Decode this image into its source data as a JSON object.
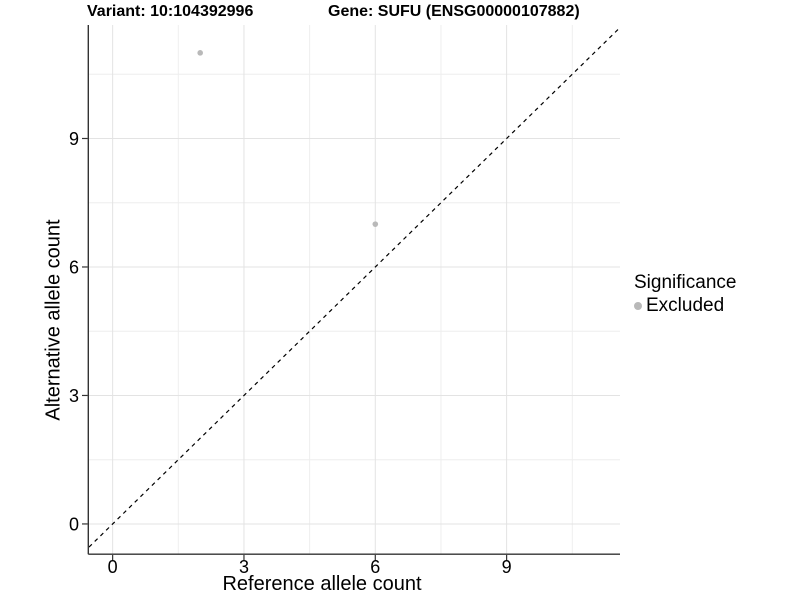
{
  "chart_data": {
    "type": "scatter",
    "title_left": "Variant: 10:104392996",
    "title_right": "Gene: SUFU (ENSG00000107882)",
    "xlabel": "Reference allele count",
    "ylabel": "Alternative allele count",
    "xlim": [
      -0.54,
      11.59
    ],
    "ylim": [
      -0.69,
      11.65
    ],
    "x_major_ticks": [
      0,
      3,
      6,
      9
    ],
    "y_major_ticks": [
      0,
      3,
      6,
      9
    ],
    "x_minor_ticks": [
      1.5,
      4.5,
      7.5,
      10.5
    ],
    "y_minor_ticks": [
      1.5,
      4.5,
      7.5,
      10.5
    ],
    "grid": "major+minor",
    "reference_line": {
      "type": "identity",
      "slope": 1,
      "intercept": 0,
      "style": "dashed",
      "color": "#000000"
    },
    "series": [
      {
        "name": "Excluded",
        "color": "#b9b9b9",
        "points": [
          {
            "x": 2,
            "y": 11
          },
          {
            "x": 6,
            "y": 7
          }
        ]
      }
    ],
    "legend": {
      "title": "Significance",
      "position": "right",
      "items": [
        {
          "label": "Excluded",
          "color": "#b9b9b9",
          "marker": "circle"
        }
      ]
    },
    "style": {
      "background": "#ffffff",
      "grid_major": "#e3e3e3",
      "grid_minor": "#eeeeee",
      "axis_line": "#333333",
      "tick_color": "#333333",
      "text_color": "#000000",
      "point_color": "#b9b9b9"
    }
  }
}
